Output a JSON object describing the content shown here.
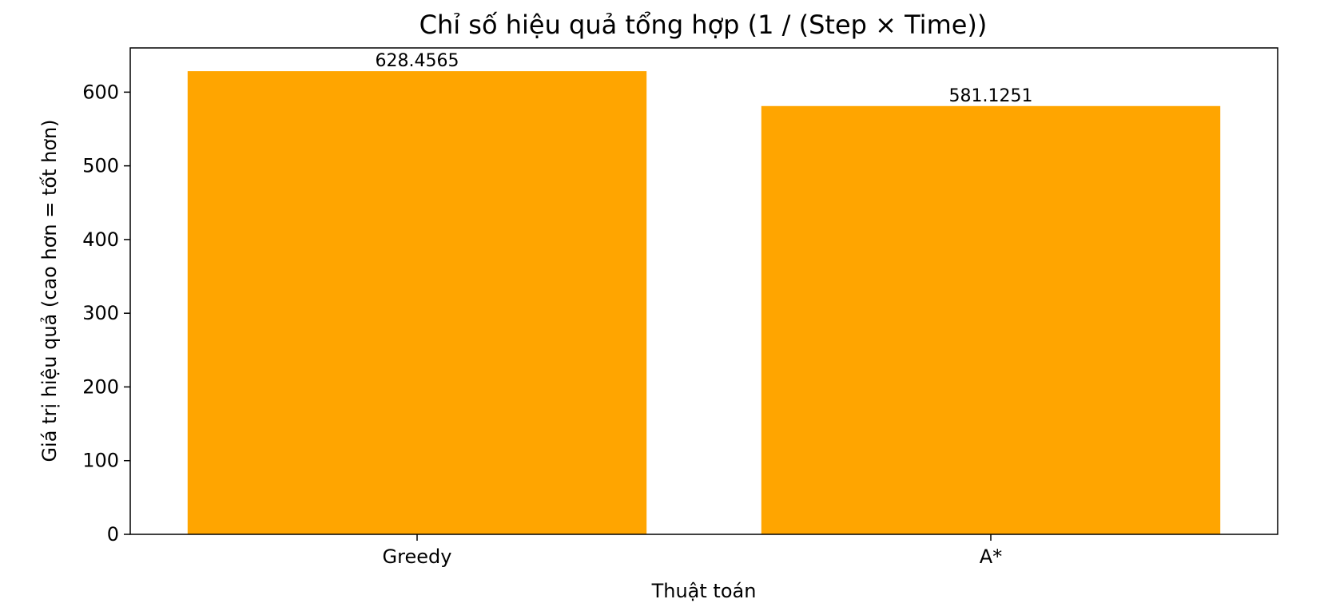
{
  "chart_data": {
    "type": "bar",
    "title": "Chỉ số hiệu quả tổng hợp (1 / (Step × Time))",
    "xlabel": "Thuật toán",
    "ylabel": "Giá trị hiệu quả (cao hơn = tốt hơn)",
    "categories": [
      "Greedy",
      "A*"
    ],
    "values": [
      628.4565,
      581.1251
    ],
    "data_labels": [
      "628.4565",
      "581.1251"
    ],
    "ylim": [
      0,
      660
    ],
    "yticks": [
      0,
      100,
      200,
      300,
      400,
      500,
      600
    ],
    "grid": false,
    "legend": "none",
    "bar_color": "#ffa500"
  }
}
